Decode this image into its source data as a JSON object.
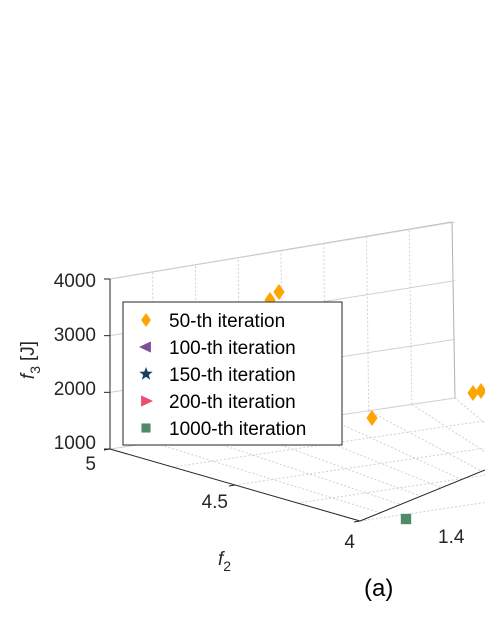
{
  "chart_data": {
    "type": "scatter3d",
    "axes": {
      "z": {
        "label_main": "f",
        "label_sub": "3",
        "label_unit": "[J]",
        "ticks": [
          "4000",
          "3000",
          "2000",
          "1000"
        ],
        "range": [
          1000,
          4000
        ]
      },
      "y": {
        "label_main": "f",
        "label_sub": "2",
        "ticks": [
          "5",
          "4.5",
          "4"
        ],
        "range": [
          4,
          5
        ]
      },
      "x": {
        "ticks": [
          "1.4"
        ]
      }
    },
    "grid": true,
    "legend_position": "top-left",
    "panel_label": "(a)",
    "series": [
      {
        "name": "50-th iteration",
        "marker": "diamond",
        "color": "#FFA500",
        "points": [
          {
            "f2": 4.95,
            "f3": 3550
          },
          {
            "f2": 4.96,
            "f3": 3700
          },
          {
            "f2": 4.62,
            "f3": 1450
          },
          {
            "f2": 4.2,
            "f3": 1900
          },
          {
            "f2": 4.22,
            "f3": 1950
          }
        ]
      },
      {
        "name": "100-th iteration",
        "marker": "triangle-left",
        "color": "#7E4E9A",
        "points": []
      },
      {
        "name": "150-th iteration",
        "marker": "star",
        "color": "#17405F",
        "points": []
      },
      {
        "name": "200-th iteration",
        "marker": "triangle-right",
        "color": "#E8506E",
        "points": []
      },
      {
        "name": "1000-th iteration",
        "marker": "square",
        "color": "#4F8A69",
        "points": [
          {
            "f2": 4.0,
            "f3": 1000
          }
        ]
      }
    ]
  }
}
